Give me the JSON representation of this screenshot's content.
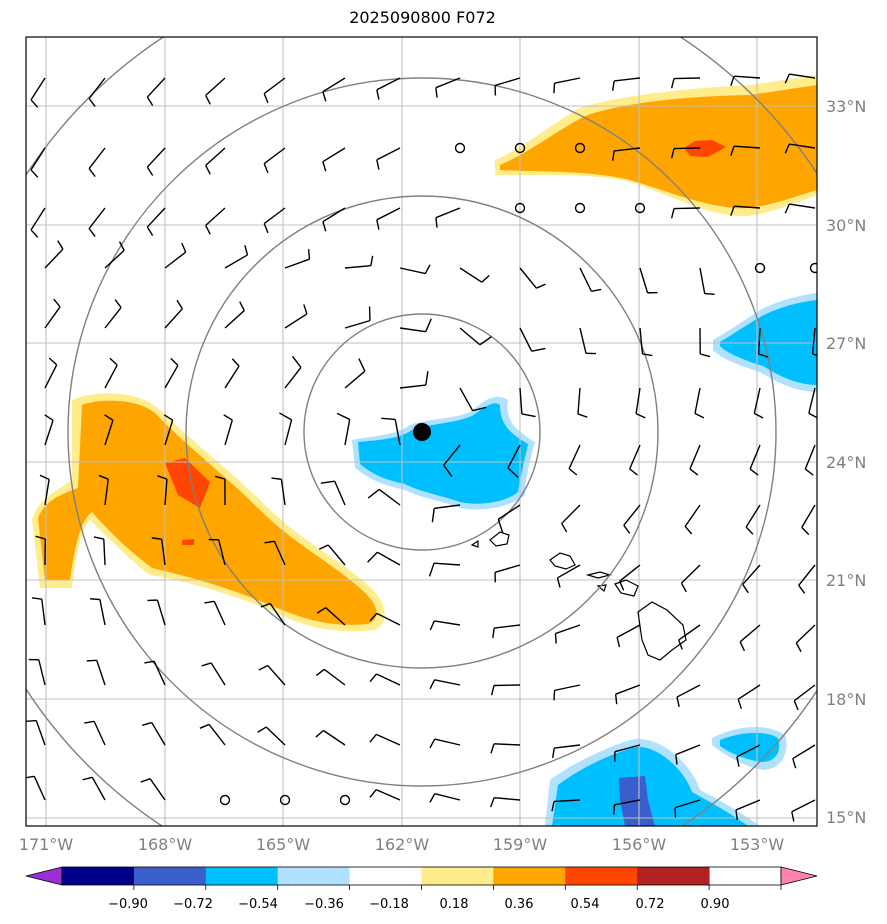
{
  "title": "2025090800 F072",
  "map": {
    "lon_range": [
      -171.5,
      -151.5
    ],
    "lat_range": [
      14.8,
      34.8
    ],
    "lon_ticks": [
      "171°W",
      "168°W",
      "165°W",
      "162°W",
      "159°W",
      "156°W",
      "153°W"
    ],
    "lat_ticks": [
      "33°N",
      "30°N",
      "27°N",
      "24°N",
      "21°N",
      "18°N",
      "15°N"
    ],
    "gridlines": true,
    "center_marker": {
      "lon": -161.5,
      "lat": 24.7
    },
    "range_rings": 4
  },
  "colorbar": {
    "labels": [
      "−0.90",
      "−0.72",
      "−0.54",
      "−0.36",
      "−0.18",
      "0.18",
      "0.36",
      "0.54",
      "0.72",
      "0.90"
    ],
    "colors": [
      "#9b30d9",
      "#00008b",
      "#3a5fcd",
      "#00bfff",
      "#b0e2ff",
      "#ffffff",
      "#ffec8b",
      "#ffa500",
      "#ff4500",
      "#b22222",
      "#ff82ab"
    ],
    "extend": "both"
  }
}
